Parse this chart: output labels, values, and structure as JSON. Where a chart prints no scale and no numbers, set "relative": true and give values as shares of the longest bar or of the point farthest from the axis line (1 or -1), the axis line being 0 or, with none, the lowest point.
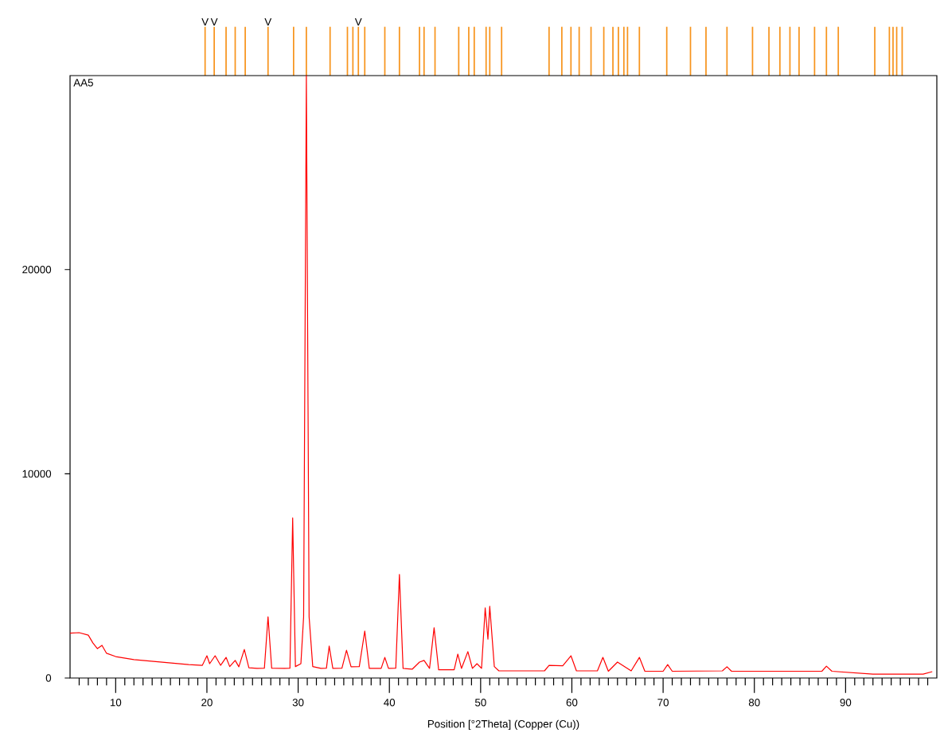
{
  "chart_data": [
    {
      "type": "bar",
      "relative": true,
      "xlim": [
        5,
        100
      ],
      "color": "#f7941d",
      "x": [
        19.8,
        20.8,
        22.1,
        23.1,
        24.2,
        26.7,
        29.5,
        30.9,
        33.5,
        35.4,
        36.0,
        36.6,
        37.3,
        39.5,
        41.1,
        43.3,
        43.8,
        45.0,
        47.6,
        48.7,
        49.3,
        50.6,
        51.0,
        52.3,
        57.5,
        58.9,
        59.9,
        60.8,
        62.1,
        63.5,
        64.5,
        65.1,
        65.7,
        66.1,
        67.4,
        70.4,
        73.0,
        74.7,
        77.0,
        79.8,
        81.6,
        82.8,
        83.9,
        84.9,
        86.6,
        87.9,
        89.2,
        93.2,
        94.8,
        95.2,
        95.6,
        96.2
      ],
      "values": [
        1,
        1,
        1,
        1,
        1,
        1,
        1,
        1,
        1,
        1,
        1,
        1,
        1,
        1,
        1,
        1,
        1,
        1,
        1,
        1,
        1,
        1,
        1,
        1,
        1,
        1,
        1,
        1,
        1,
        1,
        1,
        1,
        1,
        1,
        1,
        1,
        1,
        1,
        1,
        1,
        1,
        1,
        1,
        1,
        1,
        1,
        1,
        1,
        1,
        1,
        1,
        1
      ],
      "annotations": [
        {
          "text": "V",
          "x": 19.8,
          "y": 1
        },
        {
          "text": "V",
          "x": 20.8,
          "y": 1
        },
        {
          "text": "V",
          "x": 26.7,
          "y": 1
        },
        {
          "text": "V",
          "x": 36.6,
          "y": 1
        }
      ]
    },
    {
      "type": "line",
      "title": "AA5",
      "xlabel": "Position [°2Theta] (Copper (Cu))",
      "xlim": [
        5,
        100
      ],
      "ylim": [
        0,
        29500
      ],
      "xticks": [
        {
          "value": 6,
          "label": null
        },
        {
          "value": 7,
          "label": null
        },
        {
          "value": 8,
          "label": null
        },
        {
          "value": 9,
          "label": null
        },
        10,
        {
          "value": 11,
          "label": null
        },
        {
          "value": 12,
          "label": null
        },
        {
          "value": 13,
          "label": null
        },
        {
          "value": 14,
          "label": null
        },
        {
          "value": 15,
          "label": null
        },
        {
          "value": 16,
          "label": null
        },
        {
          "value": 17,
          "label": null
        },
        {
          "value": 18,
          "label": null
        },
        {
          "value": 19,
          "label": null
        },
        20,
        {
          "value": 21,
          "label": null
        },
        {
          "value": 22,
          "label": null
        },
        {
          "value": 23,
          "label": null
        },
        {
          "value": 24,
          "label": null
        },
        {
          "value": 25,
          "label": null
        },
        {
          "value": 26,
          "label": null
        },
        {
          "value": 27,
          "label": null
        },
        {
          "value": 28,
          "label": null
        },
        {
          "value": 29,
          "label": null
        },
        30,
        {
          "value": 31,
          "label": null
        },
        {
          "value": 32,
          "label": null
        },
        {
          "value": 33,
          "label": null
        },
        {
          "value": 34,
          "label": null
        },
        {
          "value": 35,
          "label": null
        },
        {
          "value": 36,
          "label": null
        },
        {
          "value": 37,
          "label": null
        },
        {
          "value": 38,
          "label": null
        },
        {
          "value": 39,
          "label": null
        },
        40,
        {
          "value": 41,
          "label": null
        },
        {
          "value": 42,
          "label": null
        },
        {
          "value": 43,
          "label": null
        },
        {
          "value": 44,
          "label": null
        },
        {
          "value": 45,
          "label": null
        },
        {
          "value": 46,
          "label": null
        },
        {
          "value": 47,
          "label": null
        },
        {
          "value": 48,
          "label": null
        },
        {
          "value": 49,
          "label": null
        },
        50,
        {
          "value": 51,
          "label": null
        },
        {
          "value": 52,
          "label": null
        },
        {
          "value": 53,
          "label": null
        },
        {
          "value": 54,
          "label": null
        },
        {
          "value": 55,
          "label": null
        },
        {
          "value": 56,
          "label": null
        },
        {
          "value": 57,
          "label": null
        },
        {
          "value": 58,
          "label": null
        },
        {
          "value": 59,
          "label": null
        },
        60,
        {
          "value": 61,
          "label": null
        },
        {
          "value": 62,
          "label": null
        },
        {
          "value": 63,
          "label": null
        },
        {
          "value": 64,
          "label": null
        },
        {
          "value": 65,
          "label": null
        },
        {
          "value": 66,
          "label": null
        },
        {
          "value": 67,
          "label": null
        },
        {
          "value": 68,
          "label": null
        },
        {
          "value": 69,
          "label": null
        },
        70,
        {
          "value": 71,
          "label": null
        },
        {
          "value": 72,
          "label": null
        },
        {
          "value": 73,
          "label": null
        },
        {
          "value": 74,
          "label": null
        },
        {
          "value": 75,
          "label": null
        },
        {
          "value": 76,
          "label": null
        },
        {
          "value": 77,
          "label": null
        },
        {
          "value": 78,
          "label": null
        },
        {
          "value": 79,
          "label": null
        },
        80,
        {
          "value": 81,
          "label": null
        },
        {
          "value": 82,
          "label": null
        },
        {
          "value": 83,
          "label": null
        },
        {
          "value": 84,
          "label": null
        },
        {
          "value": 85,
          "label": null
        },
        {
          "value": 86,
          "label": null
        },
        {
          "value": 87,
          "label": null
        },
        {
          "value": 88,
          "label": null
        },
        {
          "value": 89,
          "label": null
        },
        90,
        {
          "value": 91,
          "label": null
        },
        {
          "value": 92,
          "label": null
        },
        {
          "value": 93,
          "label": null
        },
        {
          "value": 94,
          "label": null
        },
        {
          "value": 95,
          "label": null
        },
        {
          "value": 96,
          "label": null
        },
        {
          "value": 97,
          "label": null
        },
        {
          "value": 98,
          "label": null
        },
        {
          "value": 99,
          "label": null
        }
      ],
      "yticks": [
        0,
        10000,
        20000
      ],
      "x": [
        5,
        6,
        7,
        7.5,
        8,
        8.5,
        9,
        10,
        12,
        15,
        18,
        19.5,
        20,
        20.3,
        20.9,
        21.5,
        22.1,
        22.5,
        23.1,
        23.5,
        24.1,
        24.6,
        25.5,
        26.3,
        26.7,
        27.1,
        28.5,
        29.1,
        29.4,
        29.7,
        30.3,
        30.6,
        30.9,
        31.2,
        31.6,
        32.5,
        33.1,
        33.4,
        33.8,
        34.8,
        35.3,
        35.8,
        36.7,
        37.3,
        37.8,
        39.1,
        39.5,
        39.9,
        40.7,
        41.1,
        41.5,
        42.5,
        43.3,
        43.8,
        44.4,
        44.9,
        45.4,
        47.1,
        47.5,
        47.9,
        48.6,
        49.1,
        49.6,
        50.1,
        50.5,
        50.8,
        51.0,
        51.5,
        52,
        55,
        57,
        57.5,
        59,
        59.9,
        60.5,
        62.8,
        63.4,
        64,
        65,
        66.5,
        67.4,
        68,
        70,
        70.5,
        71,
        76.5,
        77,
        77.5,
        79.7,
        87.4,
        87.9,
        88.5,
        93,
        98.5,
        99.5
      ],
      "series": [
        {
          "color": "#ff0000",
          "values": [
            2200,
            2220,
            2100,
            1720,
            1440,
            1600,
            1210,
            1050,
            900,
            780,
            660,
            620,
            1090,
            700,
            1090,
            620,
            1010,
            560,
            860,
            550,
            1400,
            500,
            470,
            480,
            3000,
            480,
            470,
            480,
            7840,
            560,
            700,
            3000,
            29500,
            3000,
            560,
            470,
            480,
            1560,
            470,
            480,
            1360,
            550,
            560,
            2300,
            470,
            470,
            1010,
            470,
            480,
            5070,
            470,
            430,
            780,
            860,
            470,
            2460,
            400,
            400,
            1170,
            470,
            1290,
            470,
            700,
            470,
            3430,
            1900,
            3510,
            560,
            350,
            350,
            350,
            620,
            600,
            1090,
            350,
            350,
            1010,
            330,
            780,
            350,
            1010,
            330,
            330,
            660,
            330,
            350,
            550,
            330,
            330,
            330,
            580,
            330,
            190,
            190,
            310
          ]
        }
      ]
    }
  ]
}
